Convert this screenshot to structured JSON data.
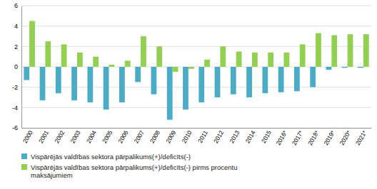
{
  "chart_data": {
    "type": "bar",
    "categories": [
      "2000",
      "2001",
      "2002",
      "2003",
      "2004",
      "2005",
      "2006",
      "2007",
      "2008",
      "2009",
      "2010",
      "2011",
      "2012",
      "2013",
      "2014",
      "2015",
      "2016*",
      "2017*",
      "2018*",
      "2019*",
      "2020*",
      "2021*"
    ],
    "series": [
      {
        "name": "Vispārējās valdības sektora pārpalikums(+)/deficīts(-)",
        "color": "#4BACC6",
        "values": [
          -1.3,
          -3.3,
          -2.6,
          -3.3,
          -3.5,
          -4.2,
          -3.5,
          -1.5,
          -2.7,
          -5.2,
          -4.2,
          -3.5,
          -3.0,
          -2.7,
          -3.0,
          -2.6,
          -2.5,
          -2.4,
          -2.0,
          -0.3,
          -0.1,
          -0.1
        ]
      },
      {
        "name": "Vispārējās valdības sektora pārpalikums(+)/deficīts(-) pirms procentu\nmaksājumiem",
        "color": "#92D050",
        "values": [
          4.5,
          2.5,
          2.2,
          1.4,
          1.0,
          0.2,
          0.6,
          3.0,
          2.0,
          -0.5,
          -0.2,
          0.7,
          2.0,
          1.5,
          1.4,
          1.4,
          1.4,
          2.2,
          3.3,
          3.1,
          3.2,
          3.2
        ]
      }
    ],
    "ylim": [
      -6,
      6
    ],
    "yticks": [
      -6,
      -4,
      -2,
      0,
      2,
      4,
      6
    ],
    "grid": true,
    "legend": "bottom"
  }
}
